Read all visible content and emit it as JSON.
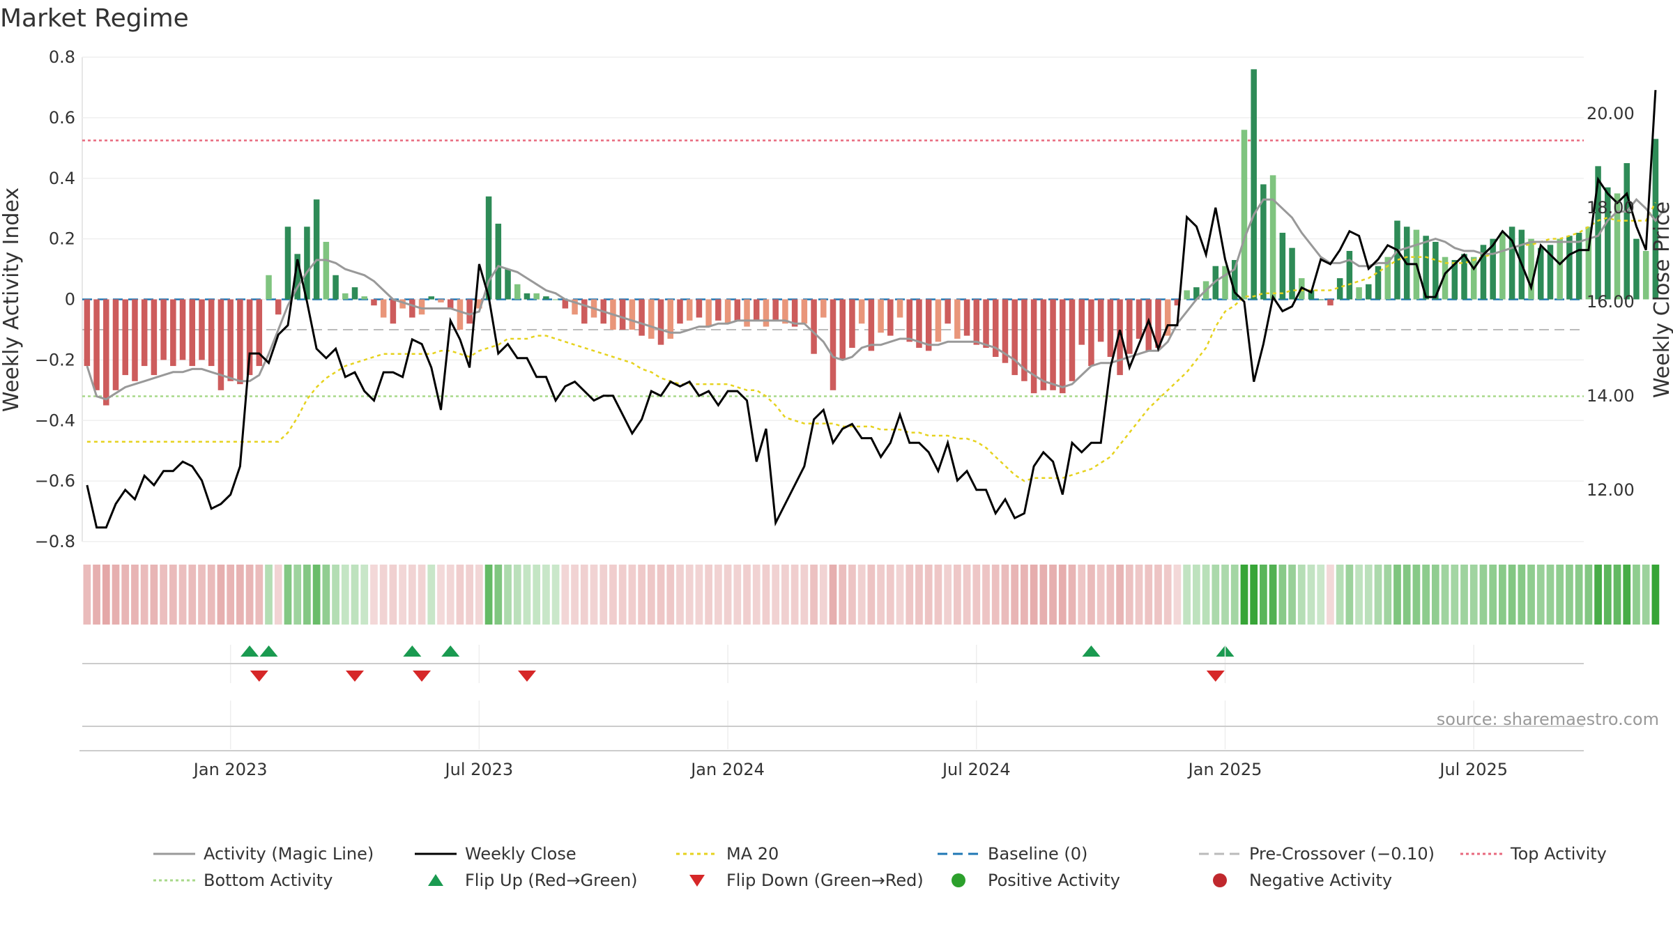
{
  "title": "Market Regime",
  "source_note": "source: sharemaestro.com",
  "colors": {
    "pos_strong": "#2e8b57",
    "pos_light": "#7fc47f",
    "neg_strong": "#cd5c5c",
    "neg_light": "#e9967a",
    "magic_line": "#999999",
    "close": "#000000",
    "ma20": "#e6d21e",
    "baseline": "#1f77b4",
    "pre": "#bbbbbb",
    "top": "#e8697d",
    "bottom": "#a8d88a",
    "flip_up": "#1a9a50",
    "flip_down": "#d62728",
    "pos_dot": "#2ca02c",
    "neg_dot": "#c0282d"
  },
  "chart_data": {
    "type": "bar",
    "y_left_label": "Weekly Activity Index",
    "y_right_label": "Weekly Close Price",
    "y_left_ticks": [
      "0.8",
      "0.6",
      "0.4",
      "0.2",
      "0",
      "−0.2",
      "−0.4",
      "−0.6",
      "−0.8"
    ],
    "y_right_ticks": [
      "20.00",
      "18.00",
      "16.00",
      "14.00",
      "12.00"
    ],
    "y_left_range": [
      -0.8,
      0.8
    ],
    "y_right_range": [
      10.9,
      21.2
    ],
    "x_ticks": [
      {
        "label": "Jan 2023",
        "week": 15
      },
      {
        "label": "Jul 2023",
        "week": 41
      },
      {
        "label": "Jan 2024",
        "week": 67
      },
      {
        "label": "Jul 2024",
        "week": 93
      },
      {
        "label": "Jan 2025",
        "week": 119
      },
      {
        "label": "Jul 2025",
        "week": 145
      }
    ],
    "weeks": 157,
    "activity": [
      -0.22,
      -0.3,
      -0.35,
      -0.3,
      -0.25,
      -0.27,
      -0.22,
      -0.25,
      -0.2,
      -0.22,
      -0.2,
      -0.22,
      -0.2,
      -0.22,
      -0.3,
      -0.27,
      -0.28,
      -0.25,
      -0.22,
      0.08,
      -0.05,
      0.24,
      0.15,
      0.24,
      0.33,
      0.19,
      0.08,
      0.02,
      0.04,
      0.01,
      -0.02,
      -0.06,
      -0.08,
      -0.03,
      -0.06,
      -0.05,
      0.01,
      -0.01,
      -0.03,
      -0.1,
      -0.08,
      -0.03,
      0.34,
      0.25,
      0.1,
      0.05,
      0.02,
      0.02,
      0.01,
      0.0,
      -0.03,
      -0.05,
      -0.08,
      -0.06,
      -0.08,
      -0.1,
      -0.1,
      -0.1,
      -0.12,
      -0.13,
      -0.15,
      -0.13,
      -0.08,
      -0.07,
      -0.06,
      -0.09,
      -0.07,
      -0.08,
      -0.07,
      -0.09,
      -0.07,
      -0.09,
      -0.07,
      -0.08,
      -0.09,
      -0.08,
      -0.18,
      -0.06,
      -0.3,
      -0.2,
      -0.16,
      -0.08,
      -0.17,
      -0.11,
      -0.12,
      -0.06,
      -0.14,
      -0.16,
      -0.17,
      -0.14,
      -0.08,
      -0.13,
      -0.12,
      -0.15,
      -0.16,
      -0.19,
      -0.21,
      -0.25,
      -0.27,
      -0.31,
      -0.3,
      -0.3,
      -0.31,
      -0.27,
      -0.15,
      -0.22,
      -0.14,
      -0.19,
      -0.25,
      -0.18,
      -0.13,
      -0.17,
      -0.16,
      -0.12,
      -0.02,
      0.03,
      0.04,
      0.06,
      0.11,
      0.11,
      0.13,
      0.56,
      0.76,
      0.38,
      0.41,
      0.22,
      0.17,
      0.07,
      0.03,
      0.0,
      -0.02,
      0.07,
      0.16,
      0.04,
      0.05,
      0.11,
      0.14,
      0.26,
      0.24,
      0.23,
      0.21,
      0.19,
      0.14,
      0.13,
      0.15,
      0.14,
      0.18,
      0.2,
      0.22,
      0.24,
      0.23,
      0.2,
      0.17,
      0.18,
      0.2,
      0.21,
      0.22,
      0.24,
      0.44,
      0.37,
      0.35,
      0.45,
      0.2,
      0.16,
      0.53
    ],
    "magic_line": [
      -0.22,
      -0.32,
      -0.33,
      -0.31,
      -0.29,
      -0.28,
      -0.27,
      -0.26,
      -0.25,
      -0.24,
      -0.24,
      -0.23,
      -0.23,
      -0.24,
      -0.25,
      -0.26,
      -0.27,
      -0.27,
      -0.25,
      -0.18,
      -0.1,
      -0.02,
      0.04,
      0.09,
      0.13,
      0.13,
      0.12,
      0.1,
      0.09,
      0.08,
      0.06,
      0.03,
      0.0,
      -0.01,
      -0.02,
      -0.03,
      -0.03,
      -0.03,
      -0.03,
      -0.04,
      -0.05,
      -0.04,
      0.06,
      0.11,
      0.1,
      0.09,
      0.07,
      0.05,
      0.03,
      0.02,
      0.0,
      -0.01,
      -0.02,
      -0.03,
      -0.04,
      -0.05,
      -0.06,
      -0.07,
      -0.08,
      -0.09,
      -0.1,
      -0.11,
      -0.11,
      -0.1,
      -0.09,
      -0.09,
      -0.08,
      -0.08,
      -0.07,
      -0.07,
      -0.07,
      -0.07,
      -0.07,
      -0.07,
      -0.08,
      -0.08,
      -0.11,
      -0.14,
      -0.19,
      -0.2,
      -0.19,
      -0.16,
      -0.15,
      -0.15,
      -0.14,
      -0.13,
      -0.13,
      -0.14,
      -0.15,
      -0.15,
      -0.14,
      -0.14,
      -0.14,
      -0.14,
      -0.15,
      -0.16,
      -0.18,
      -0.2,
      -0.23,
      -0.25,
      -0.27,
      -0.28,
      -0.29,
      -0.28,
      -0.25,
      -0.22,
      -0.21,
      -0.21,
      -0.2,
      -0.19,
      -0.18,
      -0.17,
      -0.17,
      -0.14,
      -0.08,
      -0.04,
      0.0,
      0.03,
      0.06,
      0.08,
      0.1,
      0.2,
      0.28,
      0.33,
      0.33,
      0.3,
      0.27,
      0.22,
      0.18,
      0.14,
      0.12,
      0.12,
      0.13,
      0.11,
      0.11,
      0.12,
      0.12,
      0.16,
      0.17,
      0.18,
      0.19,
      0.2,
      0.19,
      0.17,
      0.16,
      0.16,
      0.15,
      0.15,
      0.16,
      0.17,
      0.18,
      0.19,
      0.19,
      0.19,
      0.19,
      0.19,
      0.19,
      0.2,
      0.21,
      0.26,
      0.29,
      0.29,
      0.33,
      0.3,
      0.26,
      0.3
    ],
    "ma20": [
      -0.47,
      -0.47,
      -0.47,
      -0.47,
      -0.47,
      -0.47,
      -0.47,
      -0.47,
      -0.47,
      -0.47,
      -0.47,
      -0.47,
      -0.47,
      -0.47,
      -0.47,
      -0.47,
      -0.47,
      -0.47,
      -0.47,
      -0.47,
      -0.47,
      -0.44,
      -0.39,
      -0.33,
      -0.29,
      -0.26,
      -0.24,
      -0.22,
      -0.21,
      -0.2,
      -0.19,
      -0.18,
      -0.18,
      -0.18,
      -0.18,
      -0.18,
      -0.18,
      -0.17,
      -0.17,
      -0.18,
      -0.19,
      -0.17,
      -0.16,
      -0.15,
      -0.13,
      -0.13,
      -0.13,
      -0.12,
      -0.12,
      -0.13,
      -0.14,
      -0.15,
      -0.16,
      -0.17,
      -0.18,
      -0.19,
      -0.2,
      -0.21,
      -0.23,
      -0.24,
      -0.26,
      -0.27,
      -0.28,
      -0.28,
      -0.28,
      -0.28,
      -0.28,
      -0.28,
      -0.29,
      -0.3,
      -0.3,
      -0.32,
      -0.35,
      -0.39,
      -0.4,
      -0.41,
      -0.41,
      -0.41,
      -0.41,
      -0.42,
      -0.42,
      -0.42,
      -0.42,
      -0.43,
      -0.43,
      -0.43,
      -0.44,
      -0.44,
      -0.45,
      -0.45,
      -0.45,
      -0.46,
      -0.46,
      -0.47,
      -0.49,
      -0.52,
      -0.55,
      -0.58,
      -0.6,
      -0.59,
      -0.59,
      -0.59,
      -0.59,
      -0.58,
      -0.57,
      -0.56,
      -0.54,
      -0.52,
      -0.48,
      -0.44,
      -0.4,
      -0.36,
      -0.33,
      -0.3,
      -0.27,
      -0.24,
      -0.2,
      -0.16,
      -0.09,
      -0.04,
      -0.02,
      0.01,
      0.01,
      0.02,
      0.02,
      0.02,
      0.03,
      0.03,
      0.03,
      0.03,
      0.03,
      0.04,
      0.05,
      0.06,
      0.07,
      0.09,
      0.11,
      0.13,
      0.14,
      0.14,
      0.14,
      0.13,
      0.12,
      0.12,
      0.12,
      0.13,
      0.14,
      0.15,
      0.16,
      0.17,
      0.18,
      0.18,
      0.19,
      0.2,
      0.2,
      0.21,
      0.22,
      0.24,
      0.26,
      0.27,
      0.26,
      0.26,
      0.26,
      0.26,
      0.32
    ],
    "close": [
      12.1,
      11.2,
      11.2,
      11.7,
      12.0,
      11.8,
      12.3,
      12.1,
      12.4,
      12.4,
      12.6,
      12.5,
      12.2,
      11.6,
      11.7,
      11.9,
      12.5,
      14.9,
      14.9,
      14.7,
      15.3,
      15.5,
      16.9,
      16.0,
      15.0,
      14.8,
      15.0,
      14.4,
      14.5,
      14.1,
      13.9,
      14.5,
      14.5,
      14.4,
      15.2,
      15.1,
      14.6,
      13.7,
      15.6,
      15.2,
      14.6,
      16.8,
      16.1,
      14.9,
      15.1,
      14.8,
      14.8,
      14.4,
      14.4,
      13.9,
      14.2,
      14.3,
      14.1,
      13.9,
      14.0,
      14.0,
      13.6,
      13.2,
      13.5,
      14.1,
      14.0,
      14.3,
      14.2,
      14.3,
      14.0,
      14.1,
      13.8,
      14.1,
      14.1,
      13.9,
      12.6,
      13.3,
      11.3,
      11.7,
      12.1,
      12.5,
      13.5,
      13.7,
      13.0,
      13.3,
      13.4,
      13.1,
      13.1,
      12.7,
      13.0,
      13.6,
      13.0,
      13.0,
      12.8,
      12.4,
      13.0,
      12.2,
      12.4,
      12.0,
      12.0,
      11.5,
      11.8,
      11.4,
      11.5,
      12.5,
      12.8,
      12.6,
      11.9,
      13.0,
      12.8,
      13.0,
      13.0,
      14.6,
      15.4,
      14.6,
      15.1,
      15.6,
      15.0,
      15.5,
      15.5,
      17.8,
      17.6,
      17.0,
      18.0,
      16.9,
      16.2,
      16.0,
      14.3,
      15.1,
      16.1,
      15.8,
      15.9,
      16.3,
      16.2,
      16.9,
      16.8,
      17.1,
      17.5,
      17.4,
      16.7,
      16.9,
      17.2,
      17.1,
      16.8,
      16.8,
      16.1,
      16.1,
      16.6,
      16.8,
      17.0,
      16.7,
      17.0,
      17.2,
      17.5,
      17.3,
      16.8,
      16.3,
      17.2,
      17.0,
      16.8,
      17.0,
      17.1,
      17.1,
      18.6,
      18.3,
      18.1,
      18.3,
      17.6,
      17.1,
      20.5
    ],
    "flip_up_weeks": [
      17,
      19,
      34,
      38,
      105,
      119
    ],
    "flip_down_weeks": [
      18,
      28,
      35,
      46,
      118
    ],
    "reference_lines": {
      "baseline": 0.0,
      "pre_crossover": -0.1,
      "top_activity": 0.525,
      "bottom_activity": -0.32
    }
  },
  "legend": [
    {
      "label": "Activity (Magic Line)",
      "kind": "line",
      "color": "#999999",
      "dash": ""
    },
    {
      "label": "Weekly Close",
      "kind": "line",
      "color": "#000000",
      "dash": ""
    },
    {
      "label": "MA 20",
      "kind": "line",
      "color": "#e6d21e",
      "dash": "5,5"
    },
    {
      "label": "Baseline (0)",
      "kind": "line",
      "color": "#1f77b4",
      "dash": "14,8"
    },
    {
      "label": "Pre-Crossover (−0.10)",
      "kind": "line",
      "color": "#bbbbbb",
      "dash": "14,8"
    },
    {
      "label": "Top Activity",
      "kind": "line",
      "color": "#e8697d",
      "dash": "4,4"
    },
    {
      "label": "Bottom Activity",
      "kind": "line",
      "color": "#a8d88a",
      "dash": "4,4"
    },
    {
      "label": "Flip Up (Red→Green)",
      "kind": "tri-up",
      "color": "#1a9a50",
      "dash": ""
    },
    {
      "label": "Flip Down (Green→Red)",
      "kind": "tri-down",
      "color": "#d62728",
      "dash": ""
    },
    {
      "label": "Positive Activity",
      "kind": "dot",
      "color": "#2ca02c",
      "dash": ""
    },
    {
      "label": "Negative Activity",
      "kind": "dot",
      "color": "#c0282d",
      "dash": ""
    }
  ]
}
